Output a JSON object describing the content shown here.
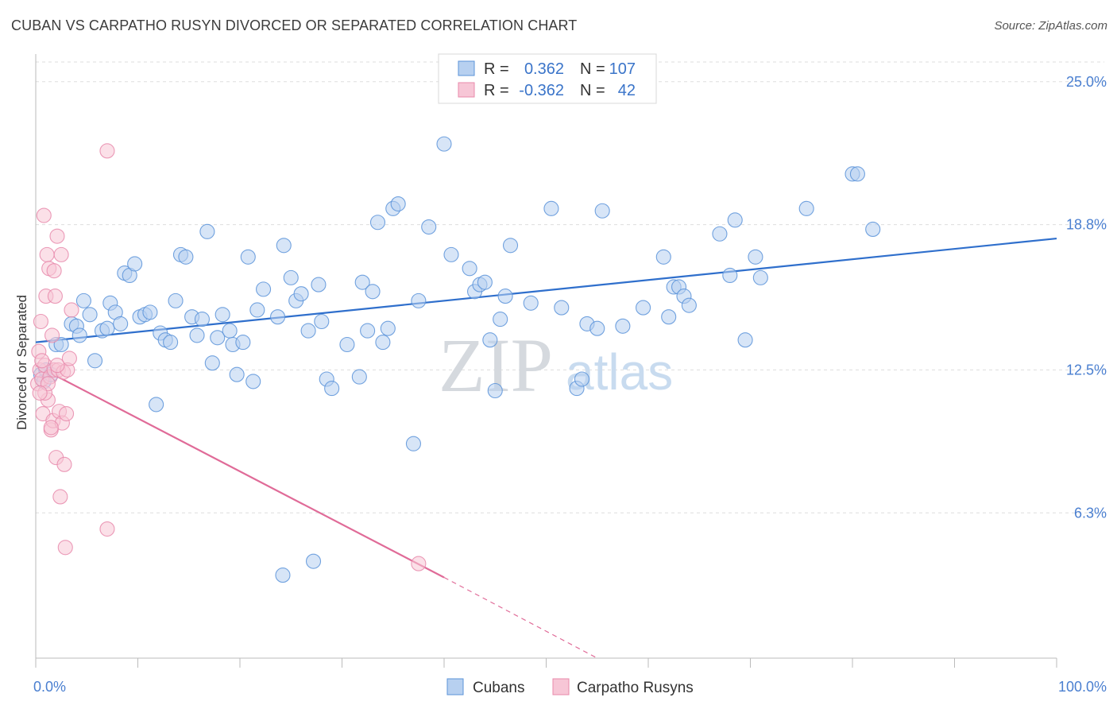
{
  "title": "CUBAN VS CARPATHO RUSYN DIVORCED OR SEPARATED CORRELATION CHART",
  "source": "Source: ZipAtlas.com",
  "watermark": {
    "zip": "ZIP",
    "atlas": "atlas"
  },
  "colors": {
    "blue": "#5b93d9",
    "blue_fill": "#b7d0f0",
    "blue_line": "#2f6fcc",
    "pink": "#e88aab",
    "pink_fill": "#f7c6d6",
    "pink_line": "#e06b98",
    "grid": "#dddddd",
    "tick_label": "#4a7fd0"
  },
  "legend": {
    "rows": [
      {
        "r_label": "R =",
        "r_value": "0.362",
        "n_label": "N =",
        "n_value": "107"
      },
      {
        "r_label": "R =",
        "r_value": "-0.362",
        "n_label": "N =",
        "n_value": "42"
      }
    ]
  },
  "bottom_legend": [
    "Cubans",
    "Carpatho Rusyns"
  ],
  "chart_data": {
    "type": "scatter",
    "title": "CUBAN VS CARPATHO RUSYN DIVORCED OR SEPARATED CORRELATION CHART",
    "xlabel": "",
    "ylabel": "Divorced or Separated",
    "xlim": [
      0,
      100
    ],
    "ylim": [
      0,
      26.2
    ],
    "x_tick_labels": [
      "0.0%",
      "100.0%"
    ],
    "y_ticks": [
      6.3,
      12.5,
      18.8,
      25.0
    ],
    "y_tick_labels": [
      "6.3%",
      "12.5%",
      "18.8%",
      "25.0%"
    ],
    "grid": "horizontal dashed",
    "legend_placement": "top-center",
    "series": [
      {
        "name": "Cubans",
        "color": "blue",
        "trend": {
          "x": [
            0,
            100
          ],
          "y": [
            13.7,
            18.2
          ],
          "dashed_from": null
        },
        "points": [
          [
            0.5,
            12.3
          ],
          [
            0.8,
            12.0
          ],
          [
            1.0,
            12.5
          ],
          [
            1.5,
            12.3
          ],
          [
            2.0,
            13.6
          ],
          [
            2.5,
            13.6
          ],
          [
            3.5,
            14.5
          ],
          [
            4.0,
            14.4
          ],
          [
            4.3,
            14.0
          ],
          [
            4.7,
            15.5
          ],
          [
            5.3,
            14.9
          ],
          [
            5.8,
            12.9
          ],
          [
            6.5,
            14.2
          ],
          [
            7.0,
            14.3
          ],
          [
            7.3,
            15.4
          ],
          [
            7.8,
            15.0
          ],
          [
            8.3,
            14.5
          ],
          [
            8.7,
            16.7
          ],
          [
            9.2,
            16.6
          ],
          [
            9.7,
            17.1
          ],
          [
            10.2,
            14.8
          ],
          [
            10.7,
            14.9
          ],
          [
            11.2,
            15.0
          ],
          [
            11.8,
            11.0
          ],
          [
            12.2,
            14.1
          ],
          [
            12.7,
            13.8
          ],
          [
            13.2,
            13.7
          ],
          [
            13.7,
            15.5
          ],
          [
            14.2,
            17.5
          ],
          [
            14.7,
            17.4
          ],
          [
            15.3,
            14.8
          ],
          [
            15.8,
            14.0
          ],
          [
            16.3,
            14.7
          ],
          [
            16.8,
            18.5
          ],
          [
            17.3,
            12.8
          ],
          [
            17.8,
            13.9
          ],
          [
            18.3,
            14.9
          ],
          [
            19.0,
            14.2
          ],
          [
            19.3,
            13.6
          ],
          [
            19.7,
            12.3
          ],
          [
            20.3,
            13.7
          ],
          [
            20.8,
            17.4
          ],
          [
            21.3,
            12.0
          ],
          [
            21.7,
            15.1
          ],
          [
            22.3,
            16.0
          ],
          [
            23.7,
            14.8
          ],
          [
            24.3,
            17.9
          ],
          [
            24.2,
            3.6
          ],
          [
            25.0,
            16.5
          ],
          [
            25.5,
            15.5
          ],
          [
            26.0,
            15.8
          ],
          [
            26.7,
            14.2
          ],
          [
            27.2,
            4.2
          ],
          [
            27.7,
            16.2
          ],
          [
            28.0,
            14.6
          ],
          [
            28.5,
            12.1
          ],
          [
            29.0,
            11.7
          ],
          [
            30.5,
            13.6
          ],
          [
            31.7,
            12.2
          ],
          [
            32.0,
            16.3
          ],
          [
            32.5,
            14.2
          ],
          [
            33.0,
            15.9
          ],
          [
            33.5,
            18.9
          ],
          [
            34.0,
            13.7
          ],
          [
            34.5,
            14.3
          ],
          [
            35.0,
            19.5
          ],
          [
            35.5,
            19.7
          ],
          [
            37.0,
            9.3
          ],
          [
            37.5,
            15.5
          ],
          [
            38.5,
            18.7
          ],
          [
            40.0,
            22.3
          ],
          [
            40.7,
            17.5
          ],
          [
            42.5,
            16.9
          ],
          [
            43.0,
            15.9
          ],
          [
            43.5,
            16.2
          ],
          [
            44.0,
            16.3
          ],
          [
            44.5,
            13.8
          ],
          [
            45.0,
            11.6
          ],
          [
            45.5,
            14.7
          ],
          [
            46.0,
            15.7
          ],
          [
            46.5,
            17.9
          ],
          [
            48.5,
            15.4
          ],
          [
            50.5,
            19.5
          ],
          [
            51.5,
            15.2
          ],
          [
            53.0,
            11.7
          ],
          [
            53.5,
            12.1
          ],
          [
            54.0,
            14.5
          ],
          [
            55.0,
            14.3
          ],
          [
            55.5,
            19.4
          ],
          [
            57.5,
            14.4
          ],
          [
            59.5,
            15.2
          ],
          [
            61.5,
            17.4
          ],
          [
            62.0,
            14.8
          ],
          [
            62.5,
            16.1
          ],
          [
            63.0,
            16.1
          ],
          [
            63.5,
            15.7
          ],
          [
            64.0,
            15.3
          ],
          [
            67.0,
            18.4
          ],
          [
            68.0,
            16.6
          ],
          [
            68.5,
            19.0
          ],
          [
            69.5,
            13.8
          ],
          [
            70.5,
            17.4
          ],
          [
            71.0,
            16.5
          ],
          [
            75.5,
            19.5
          ],
          [
            80.0,
            21.0
          ],
          [
            80.5,
            21.0
          ],
          [
            82.0,
            18.6
          ]
        ]
      },
      {
        "name": "Carpatho Rusyns",
        "color": "pink",
        "trend": {
          "x": [
            0,
            40,
            55
          ],
          "y": [
            12.7,
            3.5,
            0
          ],
          "dashed_from": 40
        },
        "points": [
          [
            0.2,
            11.9
          ],
          [
            0.3,
            13.3
          ],
          [
            0.4,
            12.5
          ],
          [
            0.5,
            14.6
          ],
          [
            0.6,
            12.1
          ],
          [
            0.7,
            10.6
          ],
          [
            0.8,
            19.2
          ],
          [
            0.9,
            12.7
          ],
          [
            1.0,
            15.7
          ],
          [
            1.1,
            17.5
          ],
          [
            1.2,
            11.2
          ],
          [
            1.3,
            16.9
          ],
          [
            1.4,
            12.2
          ],
          [
            1.5,
            9.9
          ],
          [
            1.6,
            14.0
          ],
          [
            1.7,
            10.3
          ],
          [
            1.8,
            12.5
          ],
          [
            1.9,
            15.7
          ],
          [
            2.0,
            8.7
          ],
          [
            2.1,
            18.3
          ],
          [
            2.2,
            12.5
          ],
          [
            2.3,
            10.7
          ],
          [
            2.4,
            7.0
          ],
          [
            2.5,
            17.5
          ],
          [
            2.6,
            10.2
          ],
          [
            2.7,
            12.4
          ],
          [
            2.8,
            8.4
          ],
          [
            2.9,
            4.8
          ],
          [
            3.0,
            10.6
          ],
          [
            3.1,
            12.5
          ],
          [
            3.3,
            13.0
          ],
          [
            3.5,
            15.1
          ],
          [
            0.6,
            12.9
          ],
          [
            0.9,
            11.5
          ],
          [
            1.2,
            11.9
          ],
          [
            1.5,
            10.0
          ],
          [
            1.8,
            16.8
          ],
          [
            2.1,
            12.7
          ],
          [
            0.4,
            11.5
          ],
          [
            7.0,
            22.0
          ],
          [
            7.0,
            5.6
          ],
          [
            37.5,
            4.1
          ]
        ]
      }
    ]
  }
}
